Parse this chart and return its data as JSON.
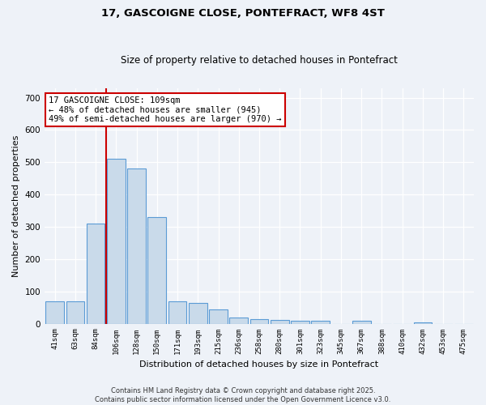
{
  "title1": "17, GASCOIGNE CLOSE, PONTEFRACT, WF8 4ST",
  "title2": "Size of property relative to detached houses in Pontefract",
  "xlabel": "Distribution of detached houses by size in Pontefract",
  "ylabel": "Number of detached properties",
  "categories": [
    "41sqm",
    "63sqm",
    "84sqm",
    "106sqm",
    "128sqm",
    "150sqm",
    "171sqm",
    "193sqm",
    "215sqm",
    "236sqm",
    "258sqm",
    "280sqm",
    "301sqm",
    "323sqm",
    "345sqm",
    "367sqm",
    "388sqm",
    "410sqm",
    "432sqm",
    "453sqm",
    "475sqm"
  ],
  "values": [
    70,
    70,
    310,
    510,
    480,
    330,
    70,
    65,
    45,
    20,
    15,
    12,
    10,
    10,
    0,
    10,
    0,
    0,
    5,
    0,
    0
  ],
  "bar_color": "#c9daea",
  "bar_edge_color": "#5b9bd5",
  "vline_x": 2.5,
  "vline_color": "#cc0000",
  "annotation_text": "17 GASCOIGNE CLOSE: 109sqm\n← 48% of detached houses are smaller (945)\n49% of semi-detached houses are larger (970) →",
  "annotation_box_color": "#ffffff",
  "annotation_box_edge": "#cc0000",
  "footer_text": "Contains HM Land Registry data © Crown copyright and database right 2025.\nContains public sector information licensed under the Open Government Licence v3.0.",
  "background_color": "#eef2f8",
  "grid_color": "#ffffff",
  "ylim": [
    0,
    730
  ],
  "yticks": [
    0,
    100,
    200,
    300,
    400,
    500,
    600,
    700
  ]
}
